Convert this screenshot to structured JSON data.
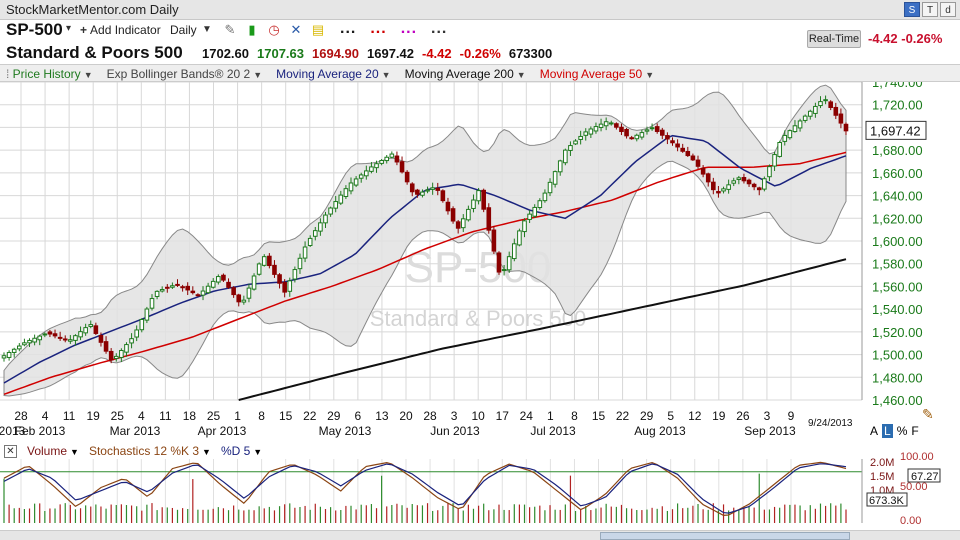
{
  "window": {
    "title": "StockMarketMentor.com Daily",
    "right_icons": [
      "S",
      "T",
      "d"
    ]
  },
  "toolbar": {
    "symbol": "SP-500",
    "add_indicator": "Add Indicator",
    "period": "Daily",
    "tool_icons": [
      "wrench-icon",
      "bar-chart-icon",
      "alarm-clock-icon",
      "x-icon",
      "note-icon"
    ],
    "color_dots": [
      {
        "text": "...",
        "color": "#1a1a1a"
      },
      {
        "text": "...",
        "color": "#d00000"
      },
      {
        "text": "...",
        "color": "#c000c0"
      },
      {
        "text": "...",
        "color": "#333333"
      }
    ]
  },
  "quote": {
    "name": "Standard & Poors 500",
    "open": "1702.60",
    "high": "1707.63",
    "low": "1694.90",
    "close": "1697.42",
    "change": "-4.42",
    "change_pct": "-0.26%",
    "volume": "673300",
    "realtime_label": "Real-Time",
    "realtime_change": "-4.42 -0.26%"
  },
  "legend": [
    {
      "label": "Price History",
      "color": "#1f7a1f"
    },
    {
      "label": "Exp Bollinger Bands® 20 2",
      "color": "#444444"
    },
    {
      "label": "Moving Average 20",
      "color": "#1a237e"
    },
    {
      "label": "Moving Average 200",
      "color": "#111111"
    },
    {
      "label": "Moving Average 50",
      "color": "#d00000"
    }
  ],
  "lower_legend": [
    {
      "label": "Volume",
      "color": "#7a1515"
    },
    {
      "label": "Stochastics 12 %K 3",
      "color": "#8b4513"
    },
    {
      "label": "%D 5",
      "color": "#1a237e"
    }
  ],
  "scale_buttons": {
    "a": "A",
    "l": "L",
    "pct": "%",
    "f": "F"
  },
  "date_stamp": "9/24/2013",
  "watermark": {
    "symbol": "SP-500",
    "name": "Standard & Poors 500"
  },
  "chart_data": [
    {
      "type": "candlestick",
      "title": "Standard & Poors 500",
      "ylim": [
        1460,
        1740
      ],
      "yticks": [
        "1,460.00",
        "1,480.00",
        "1,500.00",
        "1,520.00",
        "1,540.00",
        "1,560.00",
        "1,580.00",
        "1,600.00",
        "1,620.00",
        "1,640.00",
        "1,660.00",
        "1,680.00",
        "1,700.00",
        "1,720.00",
        "1,740.00"
      ],
      "ytick_values": [
        1460,
        1480,
        1500,
        1520,
        1540,
        1560,
        1580,
        1600,
        1620,
        1640,
        1660,
        1680,
        1700,
        1720,
        1740
      ],
      "last_price_label": "1,697.42",
      "last_price": 1697.42,
      "x_day_ticks": [
        "28",
        "4",
        "11",
        "19",
        "25",
        "4",
        "11",
        "18",
        "25",
        "1",
        "8",
        "15",
        "22",
        "29",
        "6",
        "13",
        "20",
        "28",
        "3",
        "10",
        "17",
        "24",
        "1",
        "8",
        "15",
        "22",
        "29",
        "5",
        "12",
        "19",
        "26",
        "3",
        "9"
      ],
      "x_month_labels": [
        "2013",
        "Feb 2013",
        "Mar 2013",
        "Apr 2013",
        "May 2013",
        "Jun 2013",
        "Jul 2013",
        "Aug 2013",
        "Sep 2013"
      ],
      "grid": true,
      "series": [
        {
          "name": "Price History",
          "anchors": [
            1499,
            1511,
            1519,
            1512,
            1527,
            1494,
            1516,
            1555,
            1562,
            1552,
            1570,
            1543,
            1588,
            1555,
            1597,
            1626,
            1650,
            1665,
            1677,
            1640,
            1648,
            1610,
            1645,
            1567,
            1615,
            1640,
            1680,
            1697,
            1706,
            1690,
            1700,
            1686,
            1670,
            1641,
            1656,
            1645,
            1690,
            1708,
            1726,
            1697
          ]
        },
        {
          "name": "Moving Average 20",
          "anchors": [
            1475,
            1493,
            1508,
            1520,
            1532,
            1545,
            1556,
            1562,
            1564,
            1571,
            1588,
            1620,
            1645,
            1650,
            1640,
            1627,
            1620,
            1640,
            1670,
            1693,
            1688,
            1664,
            1648,
            1664,
            1675
          ]
        },
        {
          "name": "Moving Average 50",
          "anchors": [
            1465,
            1480,
            1492,
            1503,
            1515,
            1531,
            1547,
            1560,
            1575,
            1593,
            1608,
            1618,
            1626,
            1636,
            1652,
            1665,
            1665,
            1668,
            1678
          ]
        },
        {
          "name": "Moving Average 200",
          "anchors": [
            1460,
            1483,
            1505,
            1523,
            1542,
            1561,
            1584
          ]
        }
      ]
    },
    {
      "type": "line",
      "title": "Stochastics 12 %K 3",
      "ylim": [
        0,
        100
      ],
      "yticks": [
        "100.00",
        "50.00",
        "0.00"
      ],
      "volume_ticks": [
        "2.0M",
        "1.5M",
        "1.0M"
      ],
      "last_stoch": "67.27",
      "last_volume": "673.3K",
      "series": [
        {
          "name": "Stochastics 12 %K 3",
          "anchors": [
            70,
            90,
            60,
            25,
            55,
            70,
            40,
            85,
            95,
            60,
            30,
            80,
            92,
            75,
            50,
            88,
            95,
            70,
            40,
            20,
            75,
            92,
            80,
            50,
            20,
            45,
            85,
            95,
            70,
            30,
            10,
            30,
            60,
            90,
            95,
            85
          ]
        },
        {
          "name": "%D 5",
          "anchors": [
            65,
            85,
            70,
            35,
            50,
            65,
            48,
            78,
            92,
            68,
            38,
            72,
            90,
            80,
            58,
            82,
            93,
            76,
            48,
            26,
            68,
            90,
            84,
            58,
            26,
            40,
            80,
            93,
            76,
            38,
            14,
            26,
            55,
            86,
            93,
            88
          ]
        }
      ]
    }
  ]
}
